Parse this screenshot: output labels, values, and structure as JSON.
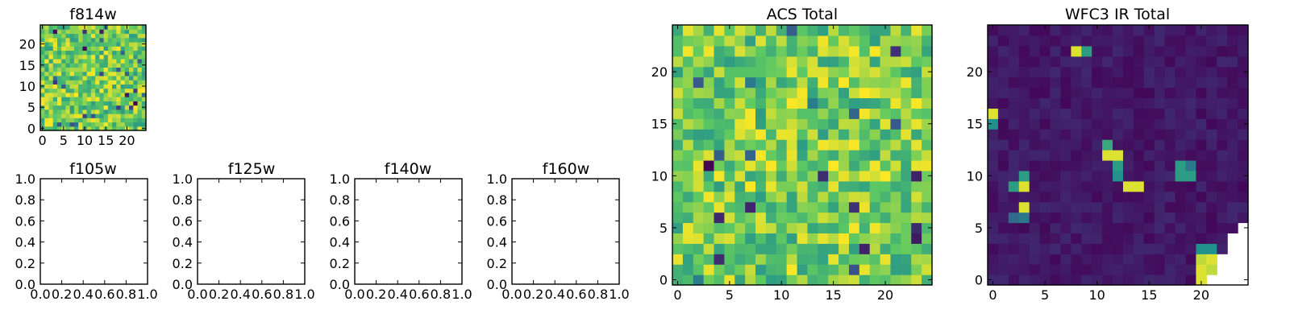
{
  "chart_data": [
    {
      "id": "f814w",
      "type": "heatmap",
      "title": "f814w",
      "grid": [
        25,
        25
      ],
      "colormap": "viridis",
      "pattern": "noise-high",
      "xlim": [
        0,
        25
      ],
      "ylim": [
        0,
        25
      ],
      "xticks": [
        0,
        5,
        10,
        15,
        20
      ],
      "yticks": [
        0,
        5,
        10,
        15,
        20
      ],
      "xtick_labels": [
        "0",
        "5",
        "10",
        "15",
        "20"
      ],
      "ytick_labels": [
        "0",
        "5",
        "10",
        "15",
        "20"
      ]
    },
    {
      "id": "f105w",
      "type": "empty",
      "title": "f105w",
      "xlim": [
        0,
        1
      ],
      "ylim": [
        0,
        1
      ],
      "xticks": [
        0,
        0.2,
        0.4,
        0.6,
        0.8,
        1.0
      ],
      "yticks": [
        0,
        0.2,
        0.4,
        0.6,
        0.8,
        1.0
      ],
      "xtick_labels": [
        "0.0",
        "0.2",
        "0.4",
        "0.6",
        "0.8",
        "1.0"
      ],
      "ytick_labels": [
        "0.0",
        "0.2",
        "0.4",
        "0.6",
        "0.8",
        "1.0"
      ]
    },
    {
      "id": "f125w",
      "type": "empty",
      "title": "f125w",
      "xlim": [
        0,
        1
      ],
      "ylim": [
        0,
        1
      ],
      "xticks": [
        0,
        0.2,
        0.4,
        0.6,
        0.8,
        1.0
      ],
      "yticks": [
        0,
        0.2,
        0.4,
        0.6,
        0.8,
        1.0
      ],
      "xtick_labels": [
        "0.0",
        "0.2",
        "0.4",
        "0.6",
        "0.8",
        "1.0"
      ],
      "ytick_labels": [
        "0.0",
        "0.2",
        "0.4",
        "0.6",
        "0.8",
        "1.0"
      ]
    },
    {
      "id": "f140w",
      "type": "empty",
      "title": "f140w",
      "xlim": [
        0,
        1
      ],
      "ylim": [
        0,
        1
      ],
      "xticks": [
        0,
        0.2,
        0.4,
        0.6,
        0.8,
        1.0
      ],
      "yticks": [
        0,
        0.2,
        0.4,
        0.6,
        0.8,
        1.0
      ],
      "xtick_labels": [
        "0.0",
        "0.2",
        "0.4",
        "0.6",
        "0.8",
        "1.0"
      ],
      "ytick_labels": [
        "0.0",
        "0.2",
        "0.4",
        "0.6",
        "0.8",
        "1.0"
      ]
    },
    {
      "id": "f160w",
      "type": "empty",
      "title": "f160w",
      "xlim": [
        0,
        1
      ],
      "ylim": [
        0,
        1
      ],
      "xticks": [
        0,
        0.2,
        0.4,
        0.6,
        0.8,
        1.0
      ],
      "yticks": [
        0,
        0.2,
        0.4,
        0.6,
        0.8,
        1.0
      ],
      "xtick_labels": [
        "0.0",
        "0.2",
        "0.4",
        "0.6",
        "0.8",
        "1.0"
      ],
      "ytick_labels": [
        "0.0",
        "0.2",
        "0.4",
        "0.6",
        "0.8",
        "1.0"
      ]
    },
    {
      "id": "acs-total",
      "type": "heatmap",
      "title": "ACS Total",
      "grid": [
        25,
        25
      ],
      "colormap": "viridis",
      "pattern": "noise-high",
      "xlim": [
        0,
        25
      ],
      "ylim": [
        0,
        25
      ],
      "xticks": [
        0,
        5,
        10,
        15,
        20
      ],
      "yticks": [
        0,
        5,
        10,
        15,
        20
      ],
      "xtick_labels": [
        "0",
        "5",
        "10",
        "15",
        "20"
      ],
      "ytick_labels": [
        "0",
        "5",
        "10",
        "15",
        "20"
      ]
    },
    {
      "id": "wfc3-ir-total",
      "type": "heatmap",
      "title": "WFC3 IR Total",
      "grid": [
        25,
        25
      ],
      "colormap": "viridis",
      "pattern": "dark-with-sources",
      "xlim": [
        0,
        25
      ],
      "ylim": [
        0,
        25
      ],
      "xticks": [
        0,
        5,
        10,
        15,
        20
      ],
      "yticks": [
        0,
        5,
        10,
        15,
        20
      ],
      "xtick_labels": [
        "0",
        "5",
        "10",
        "15",
        "20"
      ],
      "ytick_labels": [
        "0",
        "5",
        "10",
        "15",
        "20"
      ],
      "bright_cells": [
        [
          8,
          22,
          0.95
        ],
        [
          9,
          22,
          0.55
        ],
        [
          0,
          16,
          0.95
        ],
        [
          0,
          15,
          0.5
        ],
        [
          11,
          13,
          0.6
        ],
        [
          11,
          12,
          0.95
        ],
        [
          12,
          12,
          0.95
        ],
        [
          12,
          11,
          0.55
        ],
        [
          12,
          10,
          0.5
        ],
        [
          18,
          11,
          0.55
        ],
        [
          18,
          10,
          0.55
        ],
        [
          19,
          10,
          0.55
        ],
        [
          19,
          11,
          0.4
        ],
        [
          3,
          10,
          0.55
        ],
        [
          2,
          9,
          0.55
        ],
        [
          3,
          9,
          0.95
        ],
        [
          13,
          9,
          0.95
        ],
        [
          14,
          9,
          0.95
        ],
        [
          3,
          7,
          0.95
        ],
        [
          2,
          6,
          0.35
        ],
        [
          3,
          6,
          0.4
        ],
        [
          20,
          3,
          0.5
        ],
        [
          21,
          3,
          0.5
        ],
        [
          20,
          2,
          0.9
        ],
        [
          21,
          2,
          0.95
        ],
        [
          20,
          1,
          0.95
        ],
        [
          21,
          1,
          0.9
        ],
        [
          20,
          0,
          0.95
        ]
      ],
      "blank_cells": [
        [
          24,
          5
        ],
        [
          23,
          4
        ],
        [
          24,
          4
        ],
        [
          23,
          3
        ],
        [
          24,
          3
        ],
        [
          22,
          2
        ],
        [
          23,
          2
        ],
        [
          24,
          2
        ],
        [
          22,
          1
        ],
        [
          23,
          1
        ],
        [
          24,
          1
        ],
        [
          21,
          0
        ],
        [
          22,
          0
        ],
        [
          23,
          0
        ],
        [
          24,
          0
        ]
      ]
    }
  ]
}
